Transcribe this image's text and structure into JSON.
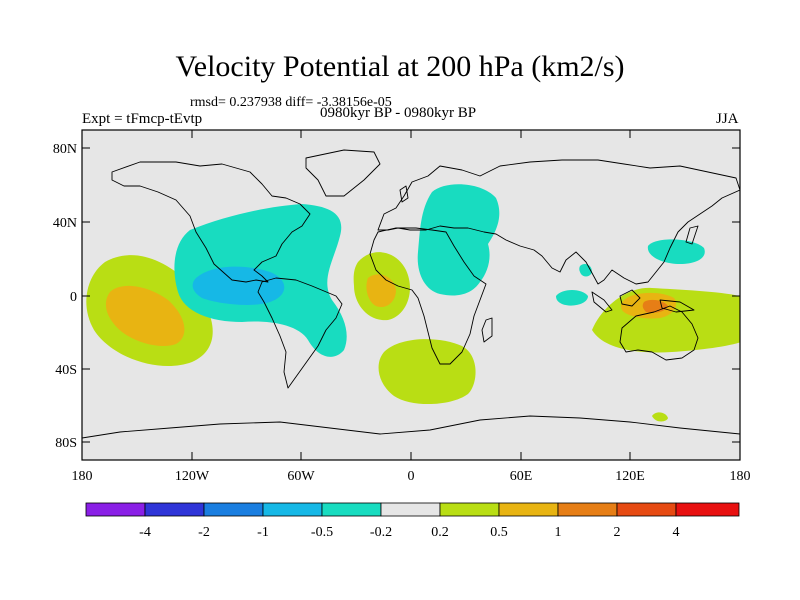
{
  "title": "Velocity Potential at 200 hPa (km2/s)",
  "stats": "rmsd= 0.237938 diff= -3.38156e-05",
  "experiment": "Expt = tFmcp-tEvtp",
  "period": "0980kyr BP - 0980kyr BP",
  "season": "JJA",
  "lat_labels": [
    "80N",
    "40N",
    "0",
    "40S",
    "80S"
  ],
  "lon_labels": [
    "180",
    "120W",
    "60W",
    "0",
    "60E",
    "120E",
    "180"
  ],
  "colorbar": {
    "colors": [
      "#8a1fe6",
      "#2f35d8",
      "#1a7ee0",
      "#16b8e6",
      "#18dcc0",
      "#e6e6e6",
      "#b9de14",
      "#e8b412",
      "#e67e16",
      "#e64a12",
      "#e81010"
    ],
    "labels": [
      "-4",
      "-2",
      "-1",
      "-0.5",
      "-0.2",
      "0.2",
      "0.5",
      "1",
      "2",
      "4"
    ]
  },
  "colors": {
    "background": "#e6e6e6",
    "neg_1": "#18dcc0",
    "neg_2": "#16b8e6",
    "pos_1": "#b9de14",
    "pos_2": "#e8b412",
    "pos_3": "#e67e16"
  }
}
